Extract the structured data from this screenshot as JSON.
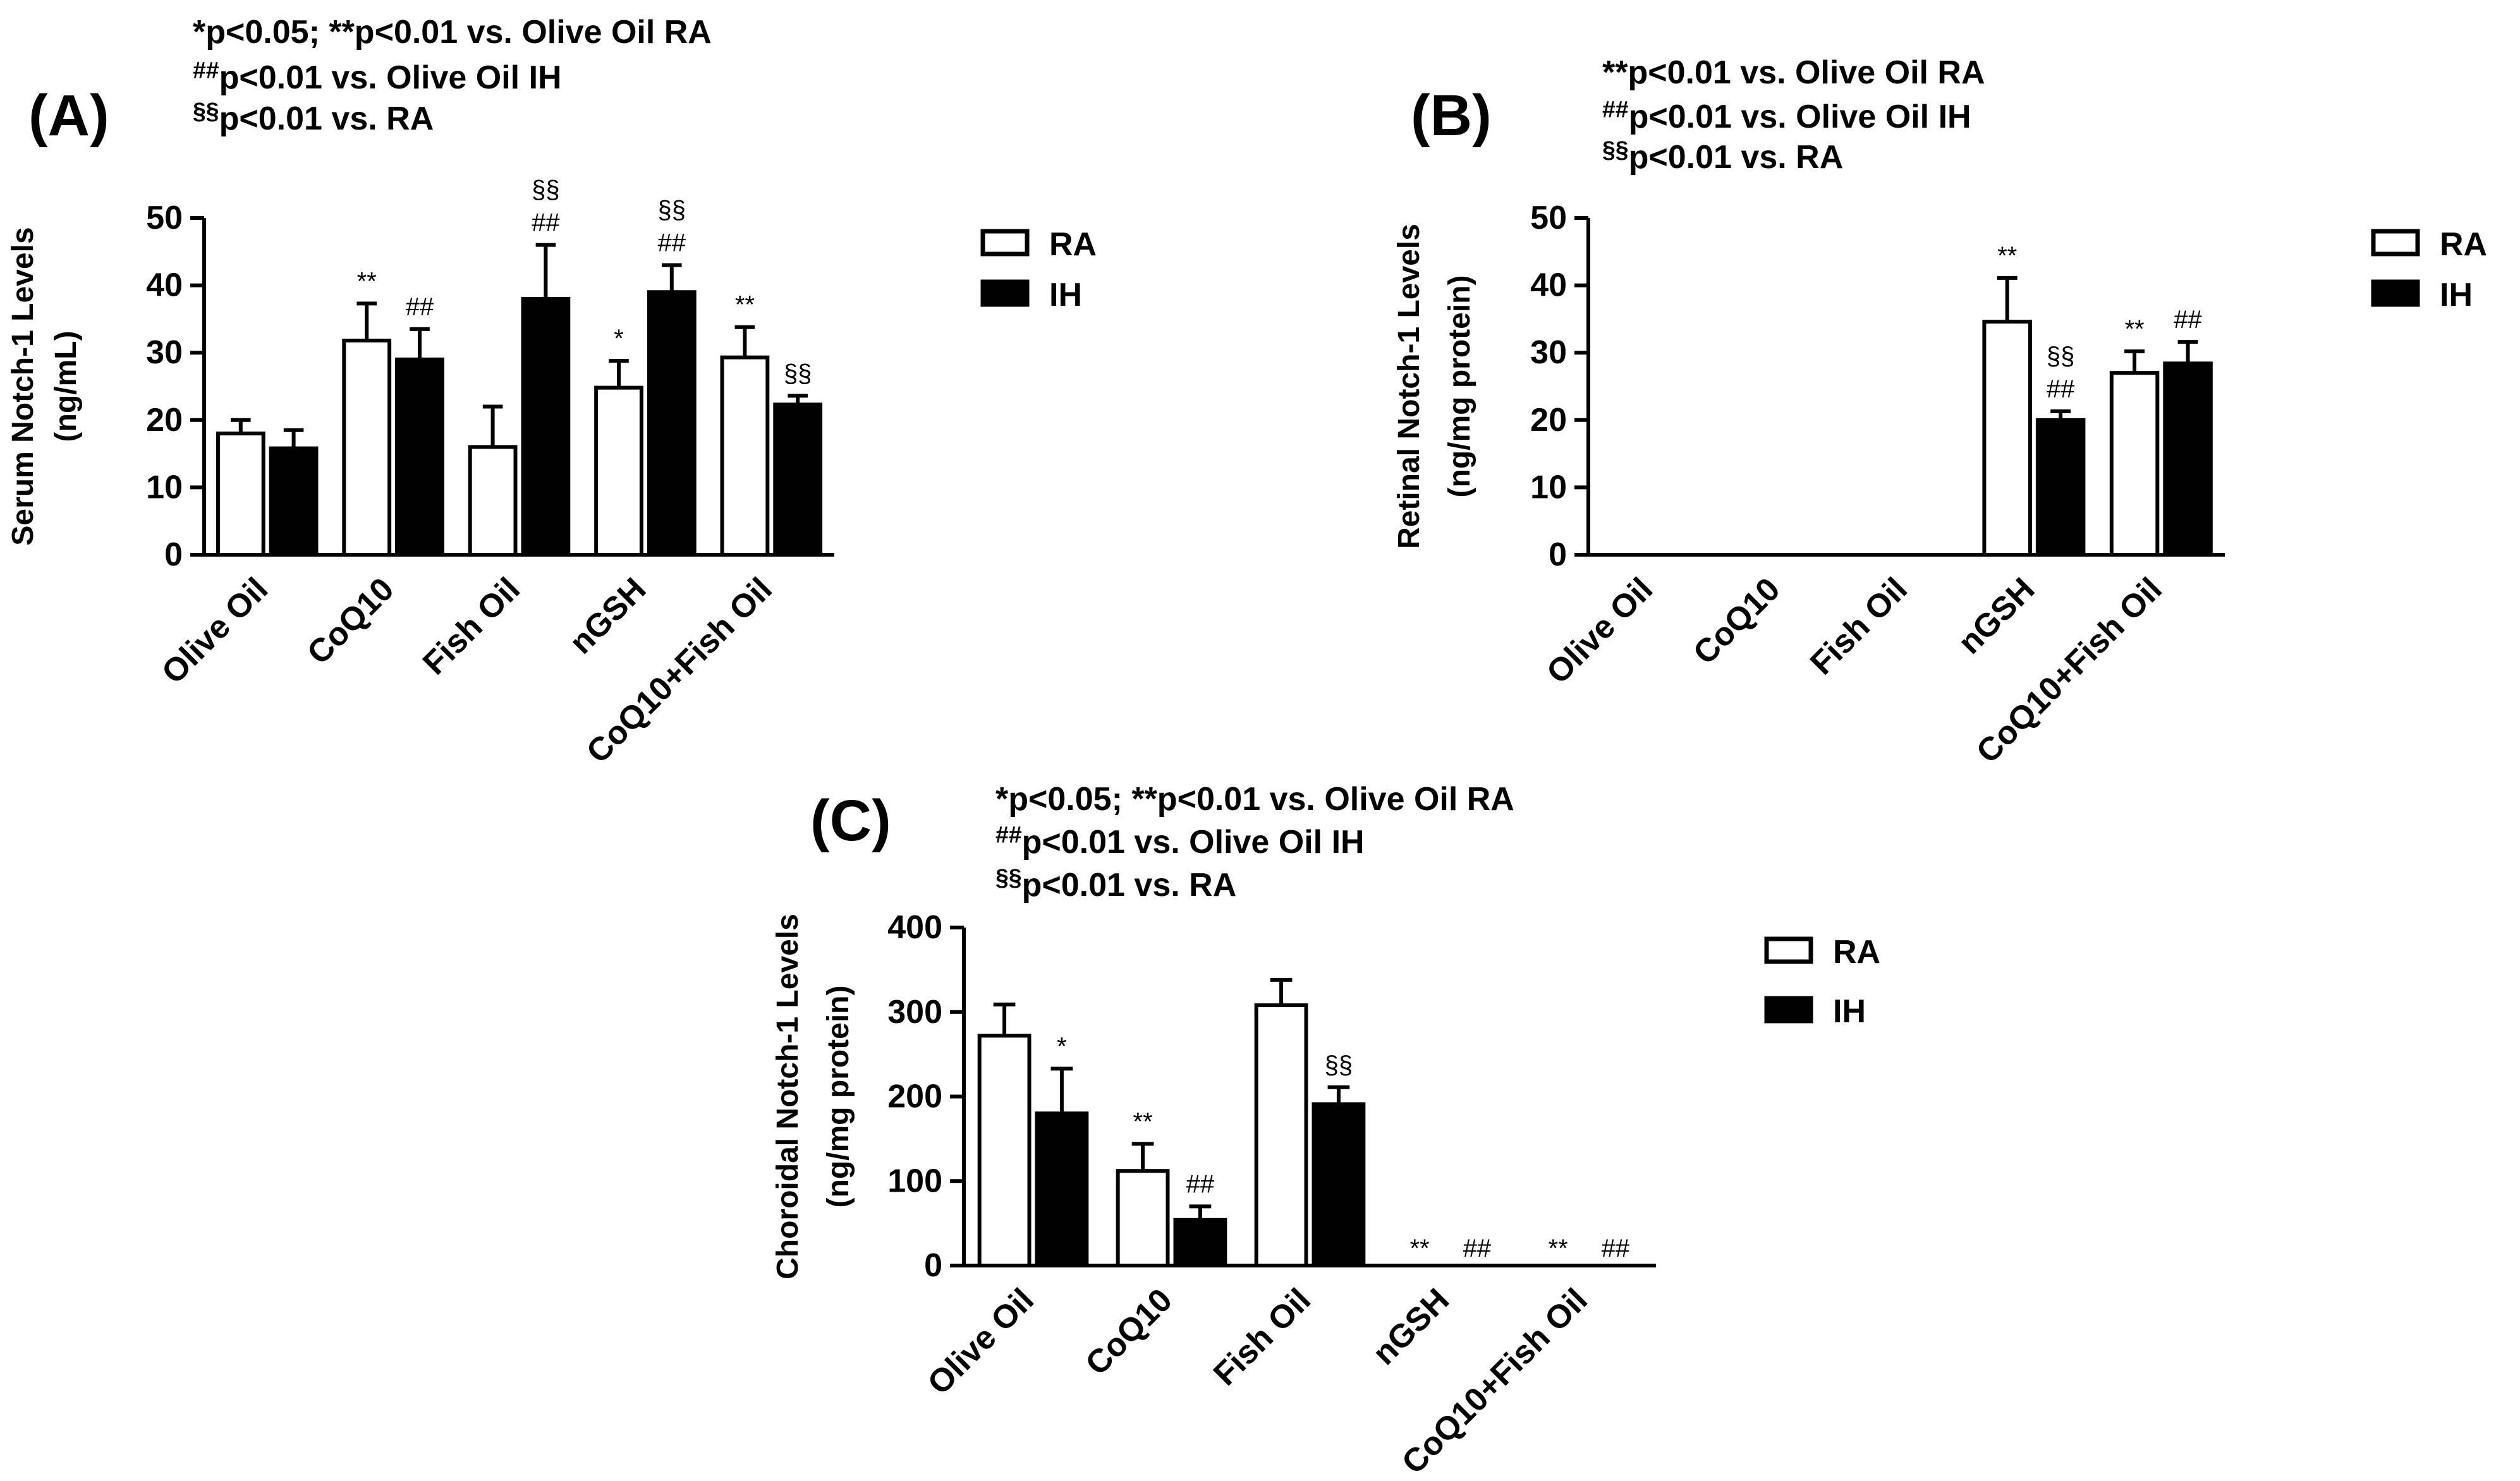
{
  "colors": {
    "ra_fill": "#ffffff",
    "ih_fill": "#000000",
    "stroke": "#000000"
  },
  "legend": {
    "ra": "RA",
    "ih": "IH"
  },
  "chart_data": [
    {
      "id": "A",
      "type": "bar",
      "panel_label": "(A)",
      "notes": [
        "*p<0.05; **p<0.01 vs. Olive Oil RA",
        "##p<0.01 vs. Olive Oil IH",
        "§§p<0.01 vs. RA"
      ],
      "ylabel_line1": "Serum Notch-1 Levels",
      "ylabel_line2": "(ng/mL)",
      "ylim": [
        0,
        50
      ],
      "yticks": [
        0,
        10,
        20,
        30,
        40,
        50
      ],
      "categories": [
        "Olive Oil",
        "CoQ10",
        "Fish Oil",
        "nGSH",
        "CoQ10+Fish Oil"
      ],
      "series": [
        {
          "name": "RA",
          "values": [
            18,
            31.8,
            16,
            24.8,
            29.3
          ],
          "errors": [
            2,
            5.5,
            6,
            4,
            4.5
          ],
          "sig": [
            "",
            "**",
            "",
            "*",
            "**"
          ]
        },
        {
          "name": "IH",
          "values": [
            15.8,
            29,
            38,
            39,
            22.3
          ],
          "errors": [
            2.7,
            4.5,
            8,
            4,
            1.3
          ],
          "sig": [
            "",
            "##",
            "§§\n##",
            "§§\n##",
            "§§"
          ]
        }
      ]
    },
    {
      "id": "B",
      "type": "bar",
      "panel_label": "(B)",
      "notes": [
        "**p<0.01 vs. Olive Oil RA",
        "##p<0.01 vs. Olive Oil IH",
        "§§p<0.01 vs. RA"
      ],
      "ylabel_line1": "Retinal Notch-1 Levels",
      "ylabel_line2": "(ng/mg protein)",
      "ylim": [
        0,
        50
      ],
      "yticks": [
        0,
        10,
        20,
        30,
        40,
        50
      ],
      "categories": [
        "Olive Oil",
        "CoQ10",
        "Fish Oil",
        "nGSH",
        "CoQ10+Fish Oil"
      ],
      "series": [
        {
          "name": "RA",
          "values": [
            0,
            0,
            0,
            34.6,
            27
          ],
          "errors": [
            0,
            0,
            0,
            6.5,
            3.2
          ],
          "sig": [
            "",
            "",
            "",
            "**",
            "**"
          ]
        },
        {
          "name": "IH",
          "values": [
            0,
            0,
            0,
            20,
            28.4
          ],
          "errors": [
            0,
            0,
            0,
            1.3,
            3.2
          ],
          "sig": [
            "",
            "",
            "",
            "§§\n##",
            "##"
          ]
        }
      ]
    },
    {
      "id": "C",
      "type": "bar",
      "panel_label": "(C)",
      "notes": [
        "*p<0.05; **p<0.01 vs. Olive Oil RA",
        "##p<0.01 vs. Olive Oil IH",
        "§§p<0.01 vs. RA"
      ],
      "ylabel_line1": "Choroidal Notch-1 Levels",
      "ylabel_line2": "(ng/mg protein)",
      "ylim": [
        0,
        400
      ],
      "yticks": [
        0,
        100,
        200,
        300,
        400
      ],
      "categories": [
        "Olive Oil",
        "CoQ10",
        "Fish Oil",
        "nGSH",
        "CoQ10+Fish Oil"
      ],
      "series": [
        {
          "name": "RA",
          "values": [
            272,
            112,
            308,
            0,
            0
          ],
          "errors": [
            37,
            32,
            30,
            0,
            0
          ],
          "sig": [
            "",
            "**",
            "",
            "**",
            "**"
          ]
        },
        {
          "name": "IH",
          "values": [
            180,
            54,
            191,
            0,
            0
          ],
          "errors": [
            53,
            16,
            20,
            0,
            0
          ],
          "sig": [
            "*",
            "##",
            "§§",
            "##",
            "##"
          ]
        }
      ]
    }
  ]
}
